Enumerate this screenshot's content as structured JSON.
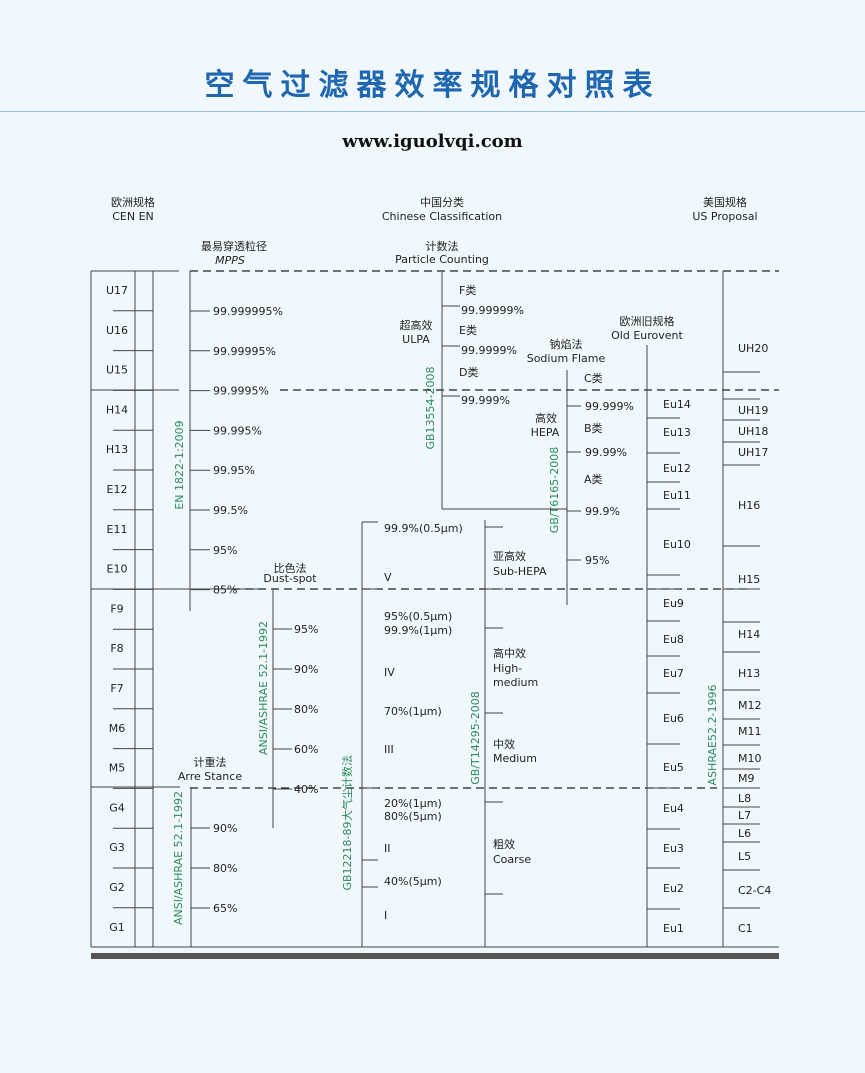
{
  "title": "空气过滤器效率规格对照表",
  "website": "www.iguolvqi.com",
  "headers": {
    "europe": {
      "cn": "欧洲规格",
      "en": "CEN EN"
    },
    "china": {
      "cn": "中国分类",
      "en": "Chinese Classification"
    },
    "us": {
      "cn": "美国规格",
      "en": "US Proposal"
    }
  },
  "method_labels": {
    "mpps": {
      "cn": "最易穿透粒径",
      "en": "MPPS"
    },
    "particle": {
      "cn": "计数法",
      "en": "Particle Counting"
    },
    "dustspot": {
      "cn": "比色法",
      "en": "Dust-spot"
    },
    "arrestance": {
      "cn": "计重法",
      "en": "Arre Stance"
    },
    "sodium": {
      "cn": "钠焰法",
      "en": "Sodium Flame"
    },
    "old_eurovent": {
      "cn": "欧洲旧规格",
      "en": "Old Eurovent"
    }
  },
  "standards": {
    "en1822": "EN 1822-1:2009",
    "gb13554": "GB13554-2008",
    "gbt6165": "GB/T6165-2008",
    "ansi_dust": "ANSI/ASHRAE 52.1-1992",
    "ansi_arr": "ANSI/ASHRAE 52.1-1992",
    "gb12218": "GB12218-89",
    "dust_count": "大气尘计数法",
    "gbt14295": "GB/T14295-2008",
    "ashrae522": "ASHRAE52.2-1996"
  },
  "cen_classes": [
    "U17",
    "U16",
    "U15",
    "H14",
    "H13",
    "E12",
    "E11",
    "E10",
    "F9",
    "F8",
    "F7",
    "M6",
    "M5",
    "G4",
    "G3",
    "G2",
    "G1"
  ],
  "mpps_values": [
    "99.999995%",
    "99.99995%",
    "99.9995%",
    "99.995%",
    "99.95%",
    "99.5%",
    "95%",
    "85%"
  ],
  "dustspot_values": [
    "95%",
    "90%",
    "80%",
    "60%",
    "40%"
  ],
  "arrestance_values": [
    "90%",
    "80%",
    "65%"
  ],
  "ulpa": {
    "label_cn": "超高效",
    "label_en": "ULPA",
    "items": [
      "F类",
      "99.99999%",
      "E类",
      "99.9999%",
      "D类",
      "99.999%"
    ]
  },
  "hepa": {
    "label_cn": "高效",
    "label_en": "HEPA",
    "items": [
      "C类",
      "99.999%",
      "B类",
      "99.99%",
      "A类",
      "99.9%"
    ]
  },
  "sub_hepa": {
    "cn": "亚高效",
    "en": "Sub-HEPA",
    "value": "95%"
  },
  "dust_count_items": [
    "99.9%(0.5μm)",
    "V",
    "95%(0.5μm)",
    "99.9%(1μm)",
    "IV",
    "70%(1μm)",
    "III",
    "20%(1μm)",
    "80%(5μm)",
    "II",
    "40%(5μm)",
    "I"
  ],
  "china_grades": {
    "high_medium": {
      "cn": "高中效",
      "en1": "High-",
      "en2": "medium"
    },
    "medium": {
      "cn": "中效",
      "en": "Medium"
    },
    "coarse": {
      "cn": "粗效",
      "en": "Coarse"
    }
  },
  "eurovent": [
    "Eu14",
    "Eu13",
    "Eu12",
    "Eu11",
    "Eu10",
    "Eu9",
    "Eu8",
    "Eu7",
    "Eu6",
    "Eu5",
    "Eu4",
    "Eu3",
    "Eu2",
    "Eu1"
  ],
  "us_classes": [
    "UH20",
    "UH19",
    "UH18",
    "UH17",
    "H16",
    "H15",
    "H14",
    "H13",
    "M12",
    "M11",
    "M10",
    "M9",
    "L8",
    "L7",
    "L6",
    "L5",
    "C2-C4",
    "C1"
  ]
}
